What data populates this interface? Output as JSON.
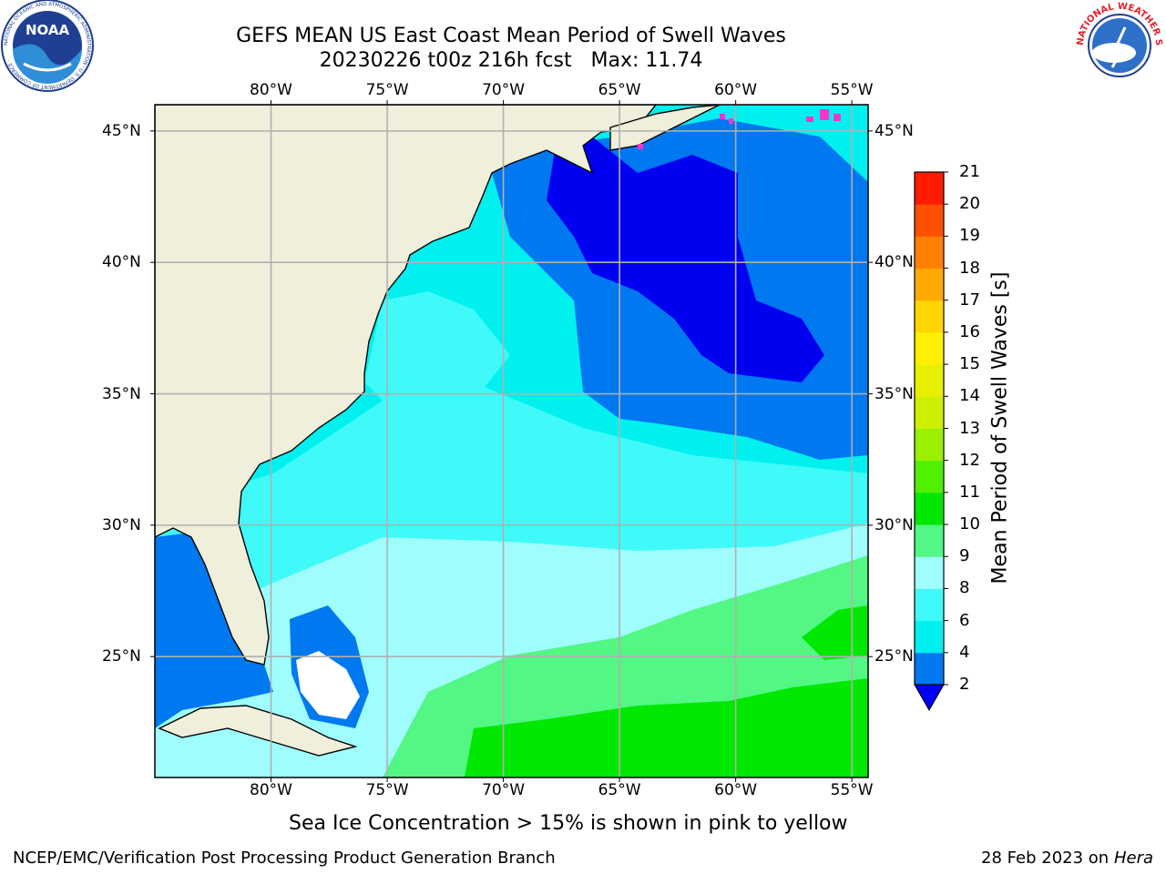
{
  "title": {
    "line1": "GEFS MEAN US East Coast Mean Period of Swell Waves",
    "line2": "20230226 t00z 216h fcst   Max: 11.74"
  },
  "logos": {
    "left": "NOAA",
    "left_ring": "NATIONAL OCEANIC AND ATMOSPHERIC ADMINISTRATION · U.S. DEPARTMENT OF COMMERCE ·",
    "right_ring": "NATIONAL WEATHER SERVICE"
  },
  "map": {
    "lon_labels": [
      "80°W",
      "75°W",
      "70°W",
      "65°W",
      "60°W",
      "55°W"
    ],
    "lat_labels": [
      "45°N",
      "40°N",
      "35°N",
      "30°N",
      "25°N"
    ],
    "lon_range": [
      -85,
      -54.3
    ],
    "lat_range": [
      20.4,
      46
    ],
    "colors": {
      "land": "#efefdc",
      "c2": "#0000f0",
      "c2_4": "#0078f0",
      "c4_6": "#00f0f0",
      "c6_8": "#40fafa",
      "c8_9": "#9ffdfd",
      "c9_10": "#52f784",
      "c10_11": "#00e800",
      "ice": "#ff33cc"
    }
  },
  "colorbar": {
    "label": "Mean Period of Swell Waves [s]",
    "ticks": [
      "2",
      "4",
      "6",
      "8",
      "9",
      "10",
      "11",
      "12",
      "13",
      "14",
      "15",
      "16",
      "17",
      "18",
      "19",
      "20",
      "21"
    ],
    "colors": [
      "#0078f0",
      "#00f0f0",
      "#40fafa",
      "#9ffdfd",
      "#52f784",
      "#00e800",
      "#50f000",
      "#9af000",
      "#cdf000",
      "#e8f000",
      "#fff000",
      "#ffd700",
      "#ffaa00",
      "#ff8000",
      "#ff5000",
      "#ff1a00"
    ],
    "extend_color": "#0000f0"
  },
  "footer": {
    "ice_note": "Sea Ice Concentration > 15% is shown in pink to yellow",
    "org": "NCEP/EMC/Verification Post Processing Product Generation Branch",
    "date": "28 Feb 2023 on",
    "machine": "Hera"
  }
}
